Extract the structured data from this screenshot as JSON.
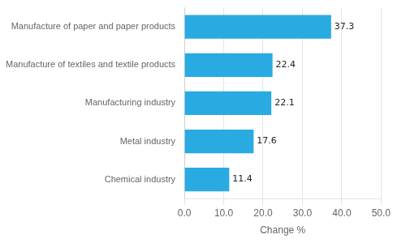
{
  "chart_data": {
    "type": "bar",
    "orientation": "horizontal",
    "categories": [
      "Chemical industry",
      "Metal industry",
      "Manufacturing industry",
      "Manufacture of textiles and textile products",
      "Manufacture of paper and paper products"
    ],
    "values": [
      11.4,
      17.6,
      22.1,
      22.4,
      37.3
    ],
    "color": "#29abe2",
    "xlabel": "Change %",
    "xlim": [
      0,
      50
    ],
    "xticks": [
      {
        "value": 0,
        "label": "0.0"
      },
      {
        "value": 10,
        "label": "10.0"
      },
      {
        "value": 20,
        "label": "20.0"
      },
      {
        "value": 30,
        "label": "30.0"
      },
      {
        "value": 40,
        "label": "40.0"
      },
      {
        "value": 50,
        "label": "50.0"
      }
    ],
    "grid": true,
    "data_labels": true
  }
}
